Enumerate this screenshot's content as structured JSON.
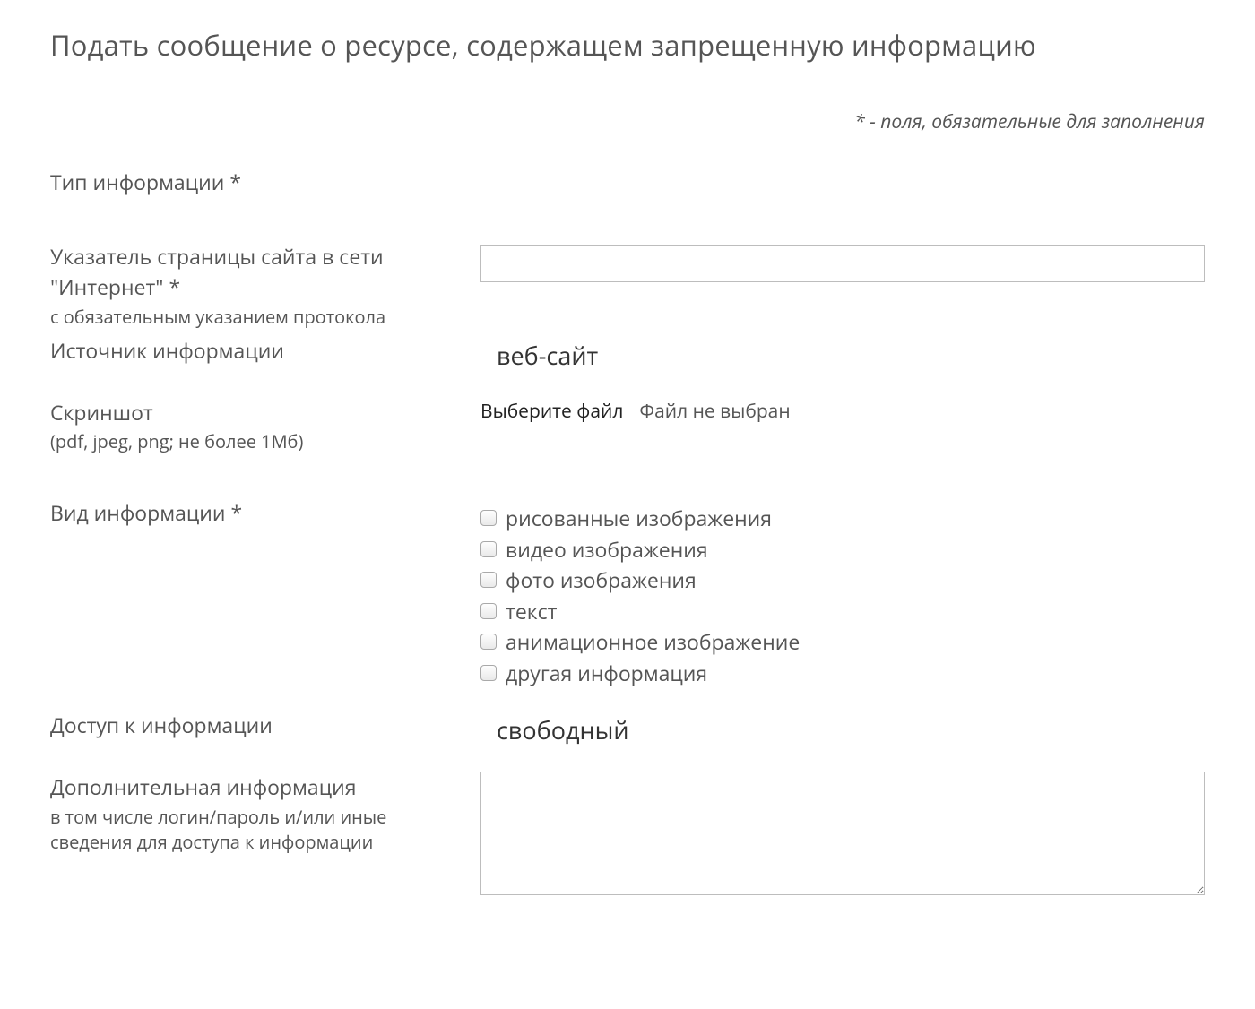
{
  "page": {
    "title": "Подать сообщение о ресурсе, содержащем запрещенную информацию",
    "required_note": "* - поля, обязательные для заполнения"
  },
  "fields": {
    "info_type": {
      "label": "Тип информации *"
    },
    "url": {
      "label": "Указатель страницы сайта в сети \"Интернет\" *",
      "hint": "с обязательным указанием протокола",
      "value": ""
    },
    "source": {
      "label": "Источник информации",
      "selected": "веб-сайт"
    },
    "screenshot": {
      "label": "Скриншот",
      "hint": "(pdf, jpeg, png; не более 1Мб)",
      "button": "Выберите файл",
      "status": "Файл не выбран"
    },
    "kind": {
      "label": "Вид информации *",
      "options": [
        "рисованные изображения",
        "видео изображения",
        "фото изображения",
        "текст",
        "анимационное изображение",
        "другая информация"
      ]
    },
    "access": {
      "label": "Доступ к информации",
      "selected": "свободный"
    },
    "additional": {
      "label": "Дополнительная информация",
      "hint": "в том числе логин/пароль и/или иные сведения для доступа к информации",
      "value": ""
    }
  },
  "colors": {
    "text": "#555555",
    "border": "#bdbdbd",
    "background": "#ffffff"
  }
}
